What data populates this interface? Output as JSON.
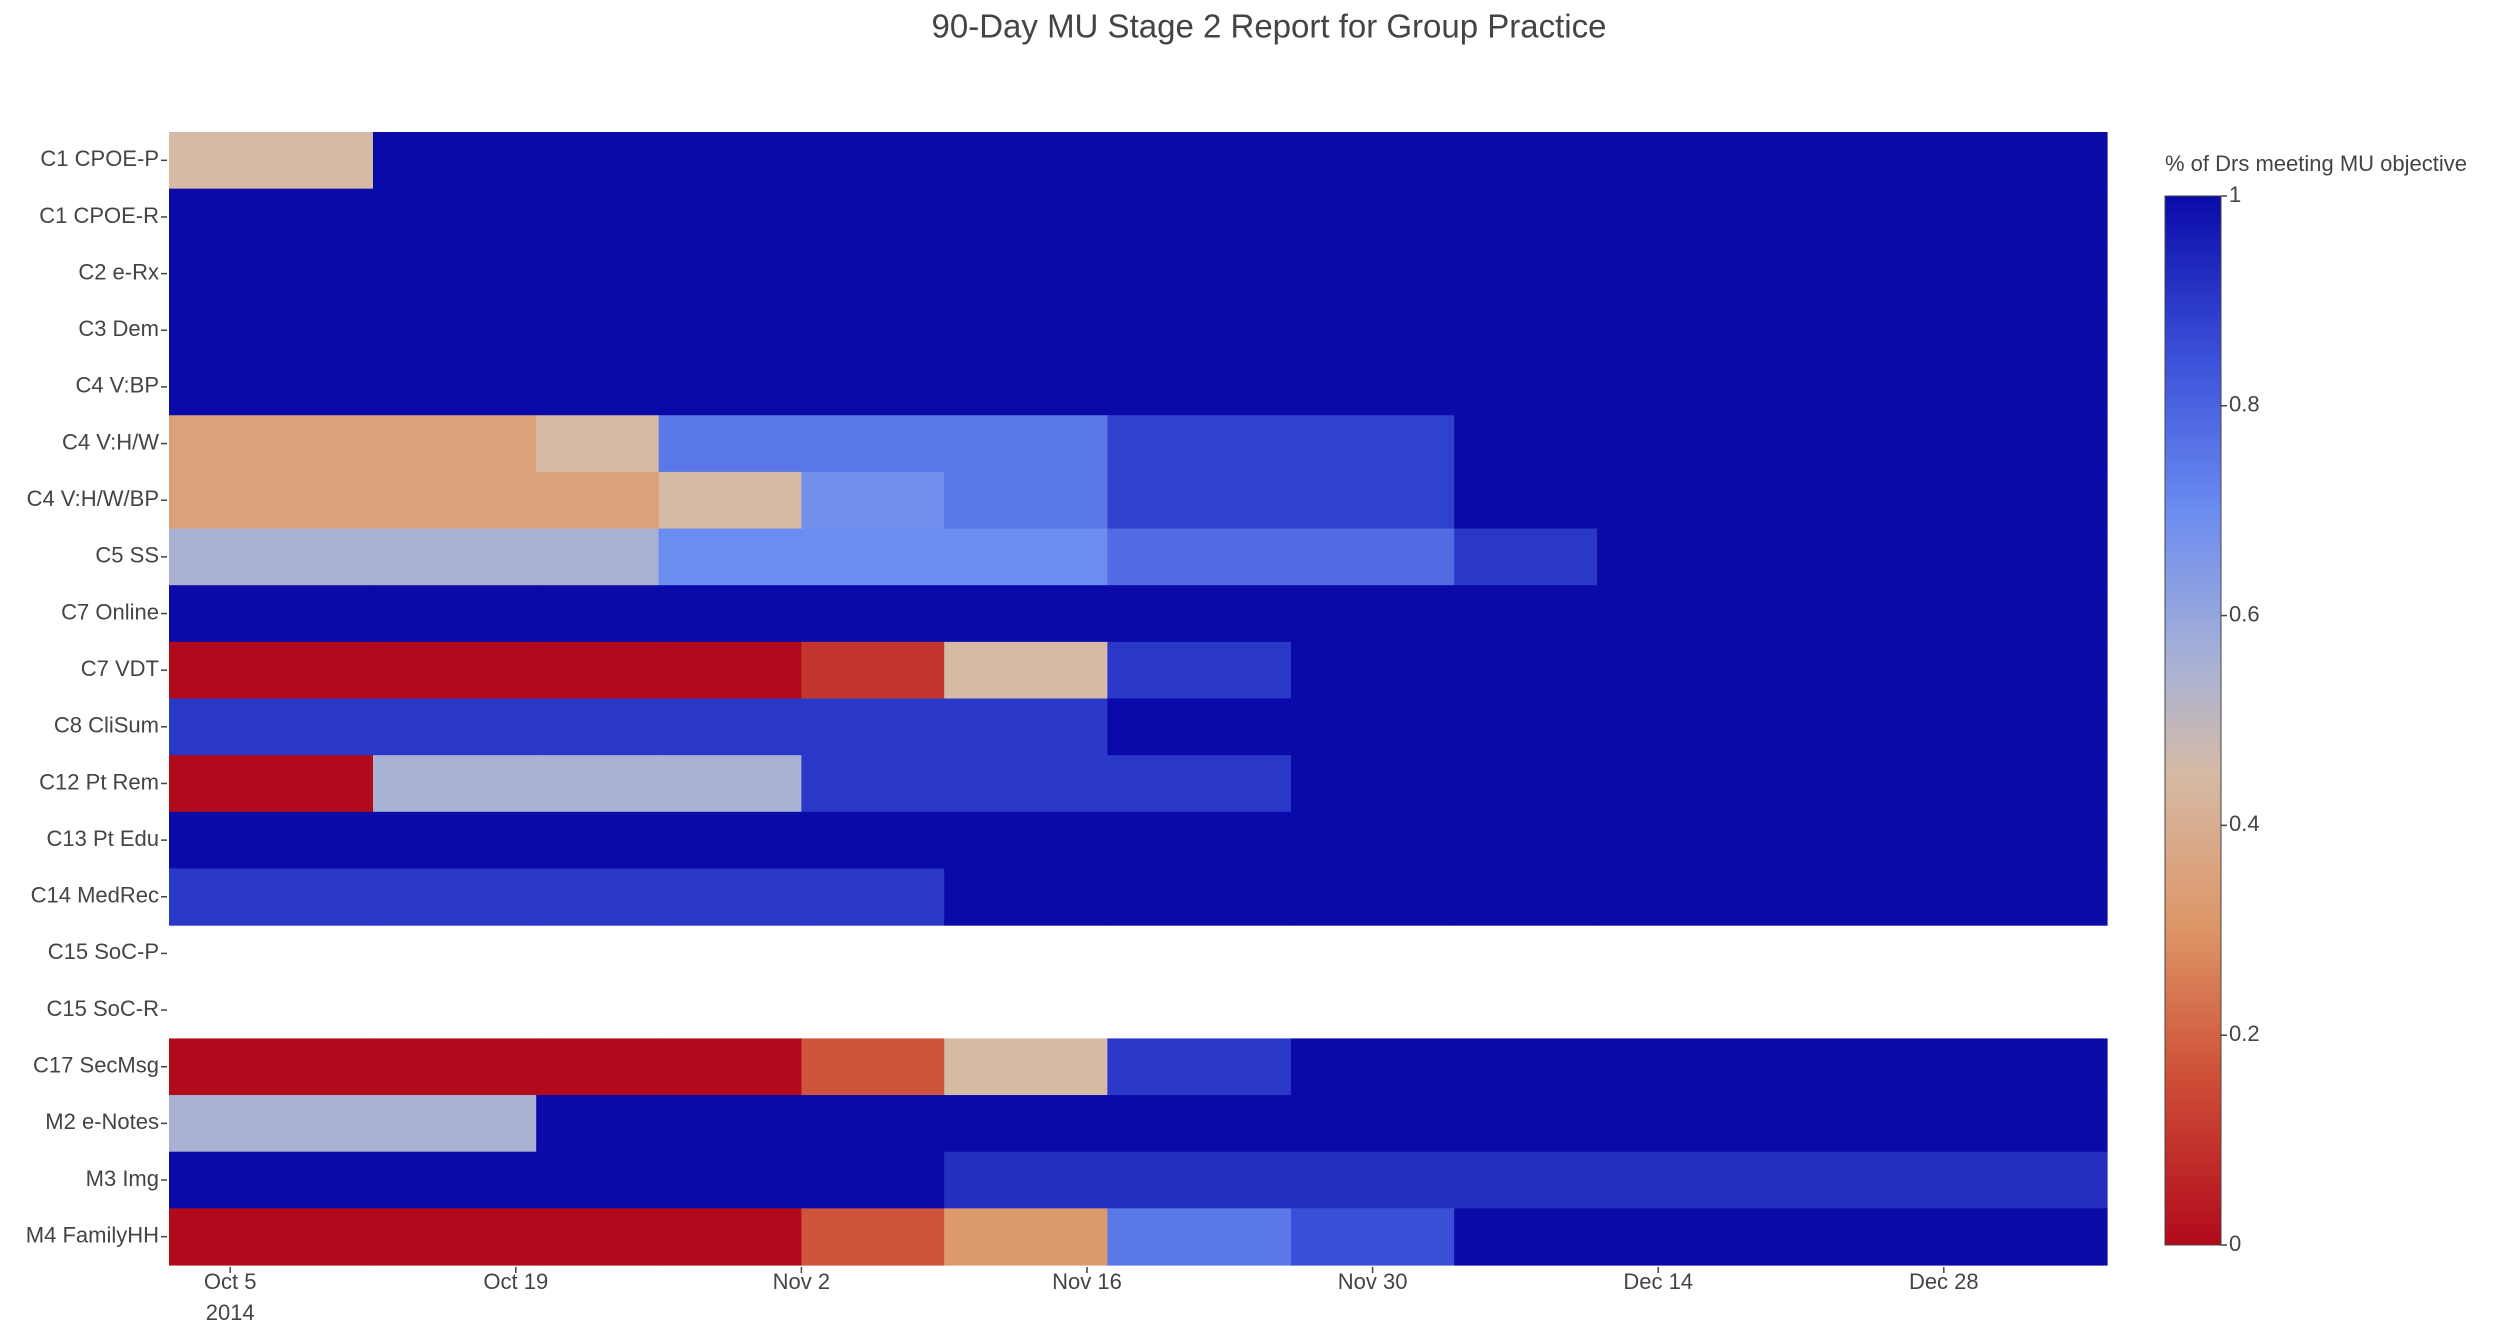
{
  "chart_data": {
    "type": "heatmap",
    "title": "90-Day MU Stage 2 Report for Group Practice",
    "categories": [
      "C1 CPOE-P",
      "C1 CPOE-R",
      "C2 e-Rx",
      "C3 Dem",
      "C4 V:BP",
      "C4 V:H/W",
      "C4 V:H/W/BP",
      "C5 SS",
      "C7 Online",
      "C7 VDT",
      "C8 CliSum",
      "C12 Pt Rem",
      "C13 Pt Edu",
      "C14 MedRec",
      "C15 SoC-P",
      "C15 SoC-R",
      "C17 SecMsg",
      "M2 e-Notes",
      "M3 Img",
      "M4 FamilyHH"
    ],
    "x": [
      "2014-10-02",
      "2014-10-12",
      "2014-10-20",
      "2014-10-26",
      "2014-11-02",
      "2014-11-09",
      "2014-11-17",
      "2014-11-26",
      "2014-12-04",
      "2014-12-11"
    ],
    "xlim": [
      "2014-10-02",
      "2015-01-05"
    ],
    "xticks": [
      {
        "value": "2014-10-05",
        "label": "Oct 5"
      },
      {
        "value": "2014-10-19",
        "label": "Oct 19"
      },
      {
        "value": "2014-11-02",
        "label": "Nov 2"
      },
      {
        "value": "2014-11-16",
        "label": "Nov 16"
      },
      {
        "value": "2014-11-30",
        "label": "Nov 30"
      },
      {
        "value": "2014-12-14",
        "label": "Dec 14"
      },
      {
        "value": "2014-12-28",
        "label": "Dec 28"
      }
    ],
    "x_year_label": "2014",
    "z": [
      [
        0.45,
        1,
        1,
        1,
        1,
        1,
        1,
        1,
        1,
        1
      ],
      [
        1,
        1,
        1,
        1,
        1,
        1,
        1,
        1,
        1,
        1
      ],
      [
        1,
        1,
        1,
        1,
        1,
        1,
        1,
        1,
        1,
        1
      ],
      [
        1,
        1,
        1,
        1,
        1,
        1,
        1,
        1,
        1,
        1
      ],
      [
        1,
        1,
        1,
        1,
        1,
        1,
        1,
        1,
        1,
        1
      ],
      [
        0.35,
        0.35,
        0.45,
        0.75,
        0.75,
        0.75,
        0.88,
        0.88,
        1,
        1
      ],
      [
        0.35,
        0.35,
        0.35,
        0.45,
        0.68,
        0.75,
        0.88,
        0.88,
        1,
        1
      ],
      [
        0.55,
        0.55,
        0.55,
        0.7,
        0.7,
        0.7,
        0.78,
        0.78,
        0.9,
        1
      ],
      [
        1,
        1,
        1,
        1,
        1,
        1,
        1,
        1,
        1,
        1
      ],
      [
        0,
        0,
        0,
        0,
        0.1,
        0.45,
        0.9,
        1,
        1,
        1
      ],
      [
        0.9,
        0.9,
        0.9,
        0.9,
        0.9,
        0.9,
        1,
        1,
        1,
        1
      ],
      [
        0,
        0.55,
        0.55,
        0.55,
        0.9,
        0.9,
        0.9,
        1,
        1,
        1
      ],
      [
        1,
        1,
        1,
        1,
        1,
        1,
        1,
        1,
        1,
        1
      ],
      [
        0.9,
        0.9,
        0.9,
        0.9,
        0.9,
        1,
        1,
        1,
        1,
        1
      ],
      [
        null,
        null,
        null,
        null,
        null,
        null,
        null,
        null,
        null,
        null
      ],
      [
        null,
        null,
        null,
        null,
        null,
        null,
        null,
        null,
        null,
        null
      ],
      [
        0,
        0,
        0,
        0,
        0.17,
        0.45,
        0.9,
        1,
        1,
        1
      ],
      [
        0.55,
        0.55,
        1,
        1,
        1,
        1,
        1,
        1,
        1,
        1
      ],
      [
        1,
        1,
        1,
        1,
        1,
        0.92,
        0.92,
        0.92,
        0.92,
        0.92
      ],
      [
        0,
        0,
        0,
        0,
        0.17,
        0.32,
        0.75,
        0.85,
        1,
        1
      ]
    ],
    "zlim": [
      0,
      1
    ],
    "zticks": [
      0,
      0.2,
      0.4,
      0.6,
      0.8,
      1
    ],
    "colorbar_title": "% of Drs meeting MU objective",
    "colorscale": [
      [
        0,
        "#b10a1c"
      ],
      [
        0.15,
        "#cd4a35"
      ],
      [
        0.3,
        "#dd9566"
      ],
      [
        0.45,
        "#d5baa5"
      ],
      [
        0.55,
        "#aab2d4"
      ],
      [
        0.7,
        "#6b8cf0"
      ],
      [
        0.85,
        "#3a4fd8"
      ],
      [
        1,
        "#0a0aa8"
      ]
    ]
  }
}
